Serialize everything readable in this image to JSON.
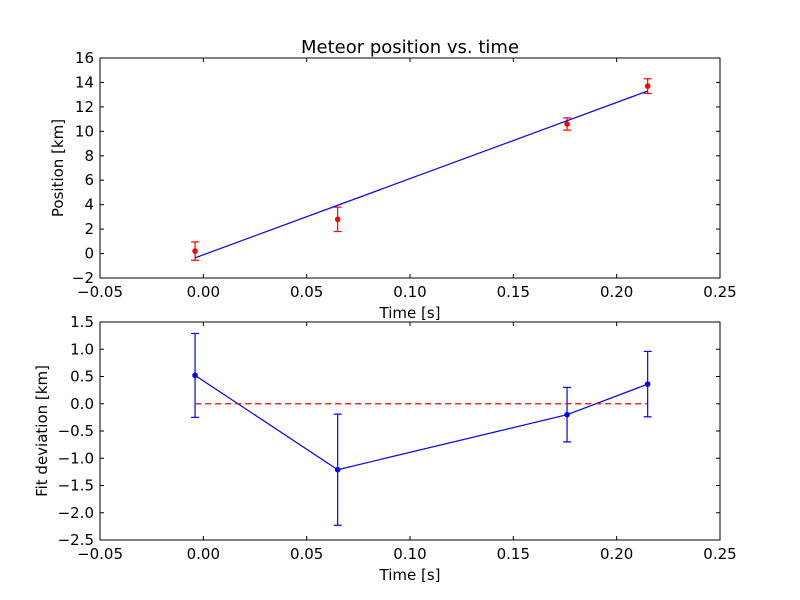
{
  "chart_data": [
    {
      "type": "scatter",
      "title": "Meteor position vs. time",
      "xlabel": "Time [s]",
      "ylabel": "Position [km]",
      "xlim": [
        -0.05,
        0.25
      ],
      "ylim": [
        -2,
        16
      ],
      "xticks": [
        -0.05,
        0.0,
        0.05,
        0.1,
        0.15,
        0.2,
        0.25
      ],
      "xtick_labels": [
        "−0.05",
        "0.00",
        "0.05",
        "0.10",
        "0.15",
        "0.20",
        "0.25"
      ],
      "yticks": [
        -2,
        0,
        2,
        4,
        6,
        8,
        10,
        12,
        14,
        16
      ],
      "ytick_labels": [
        "−2",
        "0",
        "2",
        "4",
        "6",
        "8",
        "10",
        "12",
        "14",
        "16"
      ],
      "grid": false,
      "series": [
        {
          "kind": "errorbar-points",
          "color": "#ff0000",
          "x": [
            -0.004,
            0.065,
            0.176,
            0.215
          ],
          "y": [
            0.2,
            2.8,
            10.6,
            13.7
          ],
          "yerr": [
            0.75,
            1.0,
            0.5,
            0.6
          ]
        },
        {
          "kind": "fit-line",
          "color": "#0000ff",
          "x": [
            -0.004,
            0.215
          ],
          "y": [
            -0.35,
            13.3
          ]
        }
      ]
    },
    {
      "type": "line",
      "title": "",
      "xlabel": "Time [s]",
      "ylabel": "Fit deviation [km]",
      "xlim": [
        -0.05,
        0.25
      ],
      "ylim": [
        -2.5,
        1.5
      ],
      "xticks": [
        -0.05,
        0.0,
        0.05,
        0.1,
        0.15,
        0.2,
        0.25
      ],
      "xtick_labels": [
        "−0.05",
        "0.00",
        "0.05",
        "0.10",
        "0.15",
        "0.20",
        "0.25"
      ],
      "yticks": [
        -2.5,
        -2.0,
        -1.5,
        -1.0,
        -0.5,
        0.0,
        0.5,
        1.0,
        1.5
      ],
      "ytick_labels": [
        "−2.5",
        "−2.0",
        "−1.5",
        "−1.0",
        "−0.5",
        "0.0",
        "0.5",
        "1.0",
        "1.5"
      ],
      "grid": false,
      "series": [
        {
          "kind": "errorbar-line",
          "color": "#0000ff",
          "x": [
            -0.004,
            0.065,
            0.176,
            0.215
          ],
          "y": [
            0.52,
            -1.21,
            -0.2,
            0.36
          ],
          "yerr": [
            0.77,
            1.02,
            0.5,
            0.6
          ]
        },
        {
          "kind": "zero-line",
          "color": "#ff0000",
          "linestyle": "dashed",
          "x": [
            -0.004,
            0.215
          ],
          "y": [
            0,
            0
          ]
        }
      ]
    }
  ]
}
